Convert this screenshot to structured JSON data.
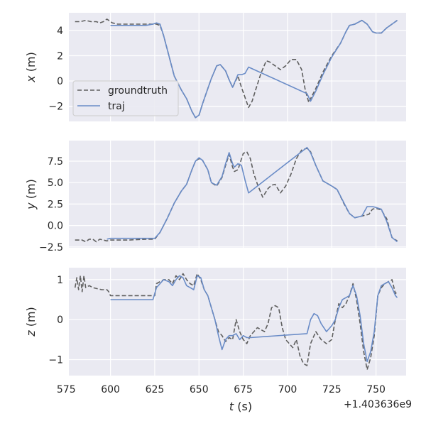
{
  "chart_data": [
    {
      "type": "line",
      "ylabel": "x (m)",
      "ylim": [
        -3.2,
        5.4
      ],
      "y_ticks": [
        -2,
        0,
        2,
        4
      ],
      "y_tick_labels": [
        "−2",
        "0",
        "2",
        "4"
      ],
      "legend": {
        "placement": "center-left",
        "entries": [
          "groundtruth",
          "traj"
        ]
      },
      "series": [
        {
          "name": "groundtruth",
          "style": "dashed",
          "x": [
            580,
            583,
            586,
            589,
            592,
            594,
            596,
            598,
            599,
            601,
            604,
            610,
            620,
            624,
            626,
            628,
            630,
            633,
            636,
            640,
            643,
            646,
            648,
            650,
            652,
            655,
            657,
            660,
            662,
            665,
            667,
            669,
            672,
            674,
            676,
            678,
            680,
            682,
            685,
            688,
            690,
            693,
            696,
            699,
            702,
            705,
            708,
            710,
            712,
            713,
            716,
            720,
            725,
            730,
            733,
            735,
            738,
            742,
            745,
            748,
            750,
            753,
            756,
            759,
            762
          ],
          "y": [
            4.7,
            4.7,
            4.8,
            4.7,
            4.7,
            4.6,
            4.7,
            4.9,
            4.8,
            4.6,
            4.5,
            4.5,
            4.5,
            4.5,
            4.5,
            4.4,
            3.6,
            2.0,
            0.4,
            -0.7,
            -1.4,
            -2.4,
            -2.9,
            -2.7,
            -1.8,
            -0.6,
            0.2,
            1.2,
            1.3,
            0.8,
            0.1,
            -0.5,
            0.4,
            -0.5,
            -1.3,
            -2.1,
            -1.6,
            -0.7,
            0.6,
            1.6,
            1.5,
            1.2,
            0.9,
            1.2,
            1.7,
            1.7,
            0.9,
            -0.7,
            -1.7,
            -1.4,
            -0.6,
            0.7,
            2.0,
            3.0,
            3.9,
            4.4,
            4.5,
            4.8,
            4.5,
            3.9,
            3.8,
            3.8,
            4.2,
            4.5,
            4.8
          ]
        },
        {
          "name": "traj",
          "style": "solid",
          "x": [
            600,
            604,
            610,
            620,
            624,
            626,
            628,
            630,
            633,
            636,
            640,
            643,
            646,
            648,
            650,
            652,
            655,
            657,
            660,
            662,
            665,
            667,
            669,
            672,
            674,
            676,
            678,
            711,
            713,
            716,
            720,
            725,
            730,
            733,
            735,
            738,
            742,
            745,
            748,
            750,
            753,
            756,
            759,
            762
          ],
          "y": [
            4.4,
            4.4,
            4.4,
            4.4,
            4.5,
            4.6,
            4.5,
            3.6,
            2.0,
            0.4,
            -0.7,
            -1.4,
            -2.4,
            -2.9,
            -2.7,
            -1.8,
            -0.6,
            0.2,
            1.2,
            1.3,
            0.8,
            0.1,
            -0.5,
            0.5,
            0.5,
            0.6,
            1.1,
            -1.0,
            -1.6,
            -0.8,
            0.5,
            1.9,
            3.0,
            3.9,
            4.4,
            4.5,
            4.8,
            4.5,
            3.9,
            3.8,
            3.8,
            4.2,
            4.5,
            4.8
          ]
        }
      ]
    },
    {
      "type": "line",
      "ylabel": "y (m)",
      "ylim": [
        -2.6,
        9.9
      ],
      "y_ticks": [
        -2.5,
        0.0,
        2.5,
        5.0,
        7.5
      ],
      "y_tick_labels": [
        "−2.5",
        "0.0",
        "2.5",
        "5.0",
        "7.5"
      ],
      "series": [
        {
          "name": "groundtruth",
          "style": "dashed",
          "x": [
            580,
            584,
            586,
            588,
            590,
            592,
            594,
            596,
            598,
            600,
            610,
            620,
            625,
            628,
            632,
            636,
            640,
            643,
            646,
            648,
            650,
            652,
            655,
            657,
            660,
            663,
            665,
            667,
            669,
            670,
            672,
            675,
            677,
            679,
            681,
            683,
            686,
            689,
            691,
            693,
            696,
            699,
            702,
            705,
            708,
            711,
            713,
            716,
            720,
            725,
            728,
            732,
            735,
            738,
            742,
            746,
            748,
            750,
            753,
            756,
            759,
            762
          ],
          "y": [
            -1.7,
            -1.7,
            -1.9,
            -1.6,
            -1.6,
            -1.9,
            -1.6,
            -1.7,
            -1.8,
            -1.7,
            -1.7,
            -1.6,
            -1.6,
            -0.8,
            0.8,
            2.6,
            4.0,
            4.8,
            6.5,
            7.5,
            7.8,
            7.6,
            6.5,
            5.0,
            4.6,
            5.6,
            7.0,
            8.3,
            6.8,
            6.3,
            6.5,
            8.4,
            8.6,
            7.8,
            6.0,
            4.8,
            3.3,
            4.3,
            4.7,
            4.8,
            3.8,
            4.6,
            6.0,
            7.8,
            8.8,
            9.0,
            8.6,
            7.0,
            5.2,
            4.6,
            4.2,
            2.5,
            1.4,
            0.9,
            1.1,
            1.3,
            1.9,
            2.0,
            1.8,
            0.8,
            -1.4,
            -1.8
          ]
        },
        {
          "name": "traj",
          "style": "solid",
          "x": [
            598,
            600,
            610,
            620,
            625,
            628,
            632,
            636,
            640,
            643,
            646,
            648,
            650,
            652,
            655,
            657,
            660,
            663,
            665,
            667,
            669,
            670,
            672,
            674,
            676,
            678,
            711,
            713,
            716,
            720,
            725,
            728,
            732,
            735,
            738,
            742,
            745,
            748,
            750,
            753,
            756,
            759,
            762
          ],
          "y": [
            -1.6,
            -1.5,
            -1.5,
            -1.5,
            -1.5,
            -0.8,
            0.8,
            2.6,
            4.0,
            4.8,
            6.5,
            7.5,
            7.9,
            7.6,
            6.5,
            5.0,
            4.7,
            5.7,
            7.2,
            8.5,
            7.2,
            6.8,
            7.2,
            7.0,
            5.3,
            3.8,
            9.1,
            8.5,
            7.0,
            5.2,
            4.6,
            4.2,
            2.6,
            1.4,
            0.9,
            1.1,
            2.2,
            2.2,
            2.1,
            1.9,
            0.5,
            -1.4,
            -1.9
          ]
        }
      ]
    },
    {
      "type": "line",
      "ylabel": "z (m)",
      "xlabel": "t (s)",
      "offset_label": "+1.403636e9",
      "xlim": [
        576.5,
        767
      ],
      "ylim": [
        -1.4,
        1.3
      ],
      "x_ticks": [
        575,
        600,
        625,
        650,
        675,
        700,
        725,
        750
      ],
      "x_tick_labels": [
        "575",
        "600",
        "625",
        "650",
        "675",
        "700",
        "725",
        "750"
      ],
      "y_ticks": [
        -1,
        0,
        1
      ],
      "y_tick_labels": [
        "−1",
        "0",
        "1"
      ],
      "series": [
        {
          "name": "groundtruth",
          "style": "dashed",
          "x": [
            580,
            581,
            582,
            583,
            584,
            585,
            586,
            588,
            590,
            595,
            598,
            599,
            600,
            605,
            610,
            620,
            625,
            626,
            630,
            633,
            635,
            637,
            639,
            641,
            643,
            645,
            647,
            649,
            651,
            653,
            655,
            657,
            659,
            661,
            663,
            665,
            667,
            669,
            671,
            673,
            675,
            677,
            679,
            681,
            683,
            685,
            687,
            689,
            691,
            693,
            695,
            697,
            699,
            701,
            703,
            705,
            707,
            709,
            711,
            713,
            716,
            719,
            722,
            725,
            727,
            729,
            731,
            733,
            735,
            737,
            739,
            741,
            743,
            745,
            747,
            749,
            751,
            753,
            755,
            757,
            759,
            761,
            762
          ],
          "y": [
            0.8,
            1.05,
            0.75,
            1.1,
            0.7,
            1.1,
            0.8,
            0.85,
            0.8,
            0.75,
            0.75,
            0.7,
            0.6,
            0.6,
            0.6,
            0.6,
            0.6,
            0.9,
            1.0,
            1.0,
            0.9,
            1.1,
            1.0,
            1.15,
            1.0,
            0.9,
            0.85,
            1.15,
            1.0,
            0.75,
            0.6,
            0.3,
            0.0,
            -0.3,
            -0.4,
            -0.55,
            -0.45,
            -0.5,
            0.0,
            -0.3,
            -0.5,
            -0.6,
            -0.4,
            -0.3,
            -0.2,
            -0.25,
            -0.3,
            -0.1,
            0.3,
            0.35,
            0.3,
            -0.2,
            -0.5,
            -0.6,
            -0.7,
            -0.5,
            -0.9,
            -1.1,
            -1.15,
            -0.6,
            -0.3,
            -0.5,
            -0.6,
            -0.5,
            0.0,
            0.4,
            0.3,
            0.4,
            0.6,
            0.9,
            0.5,
            -0.1,
            -0.8,
            -1.25,
            -0.95,
            -0.4,
            0.6,
            0.8,
            0.9,
            0.95,
            1.0,
            0.65,
            0.7
          ]
        },
        {
          "name": "traj",
          "style": "solid",
          "x": [
            600,
            605,
            610,
            620,
            624,
            626,
            630,
            633,
            635,
            637,
            639,
            641,
            643,
            645,
            647,
            649,
            651,
            653,
            655,
            657,
            659,
            661,
            663,
            665,
            667,
            669,
            671,
            673,
            675,
            677,
            679,
            711,
            713,
            715,
            717,
            719,
            722,
            725,
            727,
            729,
            731,
            733,
            735,
            737,
            739,
            741,
            743,
            745,
            747,
            749,
            751,
            753,
            755,
            757,
            759,
            761,
            762
          ],
          "y": [
            0.5,
            0.5,
            0.5,
            0.5,
            0.5,
            0.8,
            1.0,
            0.95,
            0.85,
            1.0,
            1.1,
            1.05,
            0.85,
            0.8,
            0.75,
            1.1,
            1.05,
            0.75,
            0.6,
            0.3,
            0.0,
            -0.4,
            -0.75,
            -0.5,
            -0.4,
            -0.4,
            -0.35,
            -0.5,
            -0.4,
            -0.45,
            -0.45,
            -0.35,
            0.0,
            0.15,
            0.1,
            -0.1,
            -0.3,
            -0.15,
            0.0,
            0.3,
            0.5,
            0.55,
            0.6,
            0.85,
            0.6,
            0.1,
            -0.6,
            -1.05,
            -0.8,
            -0.3,
            0.6,
            0.85,
            0.9,
            0.95,
            0.8,
            0.6,
            0.55
          ]
        }
      ]
    }
  ]
}
